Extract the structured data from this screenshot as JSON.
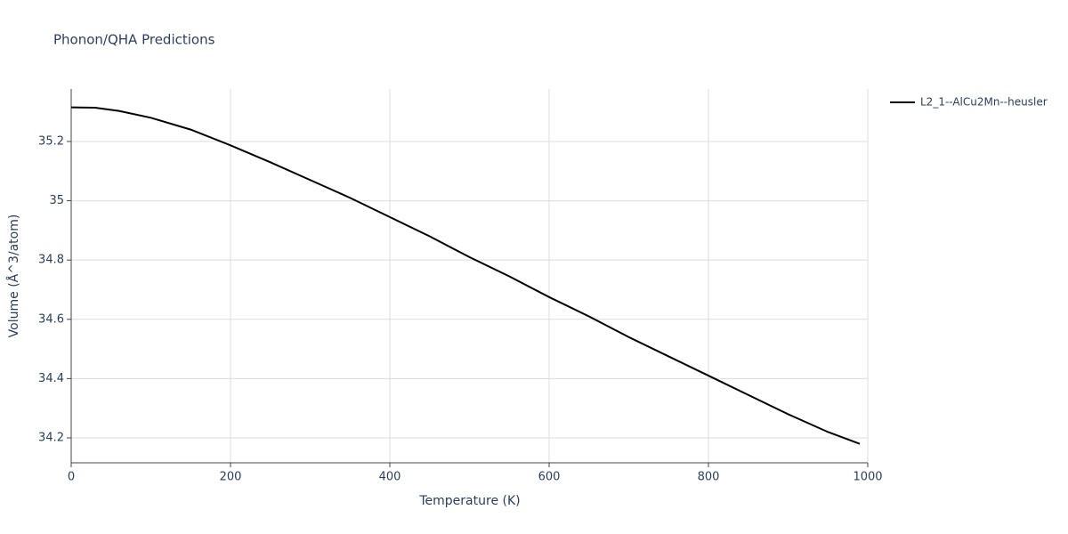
{
  "chart_data": {
    "type": "line",
    "title": "Phonon/QHA Predictions",
    "x_label": "Temperature (K)",
    "y_label": "Volume (Å^3/atom)",
    "x": [
      0,
      30,
      60,
      100,
      150,
      200,
      250,
      300,
      350,
      400,
      450,
      500,
      550,
      600,
      650,
      700,
      750,
      800,
      850,
      900,
      950,
      990
    ],
    "series": [
      {
        "name": "L2_1--AlCu2Mn--heusler",
        "color": "#000000",
        "values": [
          35.315,
          35.314,
          35.303,
          35.28,
          35.24,
          35.187,
          35.13,
          35.07,
          35.01,
          34.945,
          34.88,
          34.81,
          34.745,
          34.675,
          34.61,
          34.54,
          34.475,
          34.41,
          34.345,
          34.28,
          34.22,
          34.18
        ]
      }
    ],
    "xlim": [
      0,
      1000
    ],
    "xticks": [
      0,
      200,
      400,
      600,
      800,
      1000
    ],
    "ylim": [
      34.116,
      35.377
    ],
    "yticks": [
      34.2,
      34.4,
      34.6,
      34.8,
      35,
      35.2
    ],
    "grid": true,
    "legend": "top-right"
  }
}
